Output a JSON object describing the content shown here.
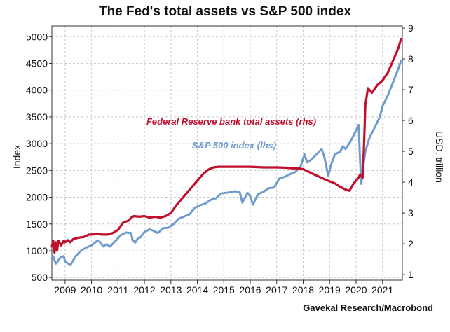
{
  "chart_data": {
    "type": "line",
    "title": "The Fed's total assets vs S&P 500 index",
    "source": "Gavekal Research/Macrobond",
    "ylabel_left": "Index",
    "ylabel_right": "USD, trillion",
    "xlim": [
      2008.5,
      2021.75
    ],
    "ylim_left": [
      450,
      5200
    ],
    "ylim_right": [
      0.82,
      9.07
    ],
    "grid": true,
    "x_ticks": [
      2009,
      2010,
      2011,
      2012,
      2013,
      2014,
      2015,
      2016,
      2017,
      2018,
      2019,
      2020,
      2021
    ],
    "y_ticks_left": [
      500,
      1000,
      1500,
      2000,
      2500,
      3000,
      3500,
      4000,
      4500,
      5000
    ],
    "y_ticks_right": [
      1,
      2,
      3,
      4,
      5,
      6,
      7,
      8,
      9
    ],
    "colors": {
      "fed": "#c0102e",
      "spx": "#6f9ccd",
      "grid": "#c8c8c8",
      "axis": "#333333"
    },
    "series": [
      {
        "name": "Federal Reserve bank total assets (rhs)",
        "axis": "right",
        "x": [
          2008.5,
          2008.55,
          2008.6,
          2008.65,
          2008.7,
          2008.75,
          2008.85,
          2008.95,
          2009.0,
          2009.1,
          2009.2,
          2009.3,
          2009.5,
          2009.7,
          2009.9,
          2010.0,
          2010.2,
          2010.4,
          2010.6,
          2010.8,
          2011.0,
          2011.2,
          2011.4,
          2011.5,
          2011.6,
          2011.8,
          2012.0,
          2012.2,
          2012.4,
          2012.6,
          2012.8,
          2013.0,
          2013.2,
          2013.4,
          2013.6,
          2013.8,
          2014.0,
          2014.2,
          2014.4,
          2014.6,
          2014.8,
          2015.0,
          2015.5,
          2016.0,
          2016.5,
          2017.0,
          2017.3,
          2017.6,
          2017.8,
          2018.0,
          2018.3,
          2018.6,
          2018.9,
          2019.2,
          2019.4,
          2019.6,
          2019.75,
          2019.9,
          2020.0,
          2020.1,
          2020.15,
          2020.2,
          2020.25,
          2020.3,
          2020.35,
          2020.45,
          2020.6,
          2020.8,
          2021.0,
          2021.2,
          2021.4,
          2021.6,
          2021.7
        ],
        "y": [
          1.91,
          2.1,
          1.72,
          2.05,
          1.78,
          2.1,
          1.95,
          2.1,
          2.05,
          2.12,
          2.05,
          2.15,
          2.2,
          2.22,
          2.3,
          2.3,
          2.32,
          2.3,
          2.3,
          2.35,
          2.45,
          2.7,
          2.75,
          2.85,
          2.9,
          2.88,
          2.9,
          2.85,
          2.88,
          2.85,
          2.9,
          3.0,
          3.25,
          3.45,
          3.65,
          3.85,
          4.05,
          4.25,
          4.4,
          4.48,
          4.5,
          4.5,
          4.5,
          4.5,
          4.48,
          4.48,
          4.47,
          4.45,
          4.45,
          4.42,
          4.3,
          4.18,
          4.06,
          3.96,
          3.85,
          3.76,
          3.72,
          3.95,
          4.05,
          4.15,
          4.25,
          4.2,
          4.15,
          5.2,
          6.5,
          7.05,
          6.9,
          7.15,
          7.3,
          7.55,
          7.95,
          8.35,
          8.65
        ]
      },
      {
        "name": "S&P 500 index (lhs)",
        "axis": "left",
        "x": [
          2008.5,
          2008.55,
          2008.6,
          2008.65,
          2008.7,
          2008.75,
          2008.85,
          2008.95,
          2009.0,
          2009.2,
          2009.4,
          2009.6,
          2009.8,
          2010.0,
          2010.2,
          2010.3,
          2010.45,
          2010.55,
          2010.7,
          2010.9,
          2011.1,
          2011.3,
          2011.5,
          2011.55,
          2011.65,
          2011.75,
          2011.85,
          2012.0,
          2012.2,
          2012.4,
          2012.5,
          2012.7,
          2012.9,
          2013.1,
          2013.3,
          2013.5,
          2013.7,
          2013.9,
          2014.1,
          2014.3,
          2014.5,
          2014.7,
          2014.9,
          2015.2,
          2015.4,
          2015.6,
          2015.7,
          2015.9,
          2016.0,
          2016.1,
          2016.3,
          2016.5,
          2016.7,
          2016.9,
          2017.1,
          2017.3,
          2017.5,
          2017.7,
          2017.9,
          2018.05,
          2018.15,
          2018.3,
          2018.5,
          2018.7,
          2018.8,
          2018.95,
          2019.05,
          2019.2,
          2019.4,
          2019.5,
          2019.6,
          2019.8,
          2020.0,
          2020.1,
          2020.15,
          2020.2,
          2020.25,
          2020.35,
          2020.5,
          2020.65,
          2020.8,
          2020.9,
          2021.0,
          2021.2,
          2021.4,
          2021.6,
          2021.7
        ],
        "y": [
          860,
          900,
          820,
          760,
          780,
          830,
          880,
          900,
          800,
          730,
          900,
          1000,
          1060,
          1100,
          1180,
          1170,
          1080,
          1120,
          1080,
          1180,
          1290,
          1340,
          1330,
          1200,
          1150,
          1230,
          1250,
          1350,
          1400,
          1360,
          1330,
          1420,
          1430,
          1500,
          1600,
          1640,
          1680,
          1800,
          1850,
          1880,
          1950,
          1980,
          2070,
          2090,
          2110,
          2100,
          1900,
          2080,
          2020,
          1860,
          2060,
          2100,
          2170,
          2180,
          2350,
          2380,
          2430,
          2470,
          2570,
          2800,
          2650,
          2700,
          2800,
          2900,
          2750,
          2400,
          2600,
          2800,
          2850,
          2950,
          2900,
          3050,
          3250,
          3350,
          2700,
          2250,
          2500,
          2850,
          3100,
          3250,
          3400,
          3500,
          3700,
          3900,
          4150,
          4400,
          4550
        ]
      }
    ],
    "annotations": [
      {
        "text": "Federal Reserve bank total assets (rhs)",
        "series": 0
      },
      {
        "text": "S&P 500 index (lhs)",
        "series": 1
      }
    ]
  }
}
